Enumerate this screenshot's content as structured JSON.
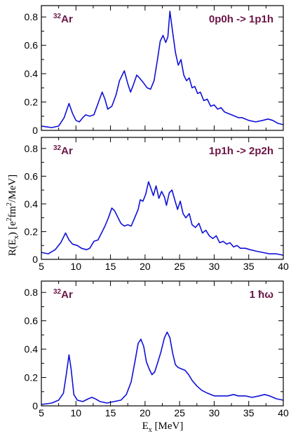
{
  "figure": {
    "ylabel_prefix": "R(E",
    "ylabel_sub": "x",
    "ylabel_mid1": ") [e",
    "ylabel_sup1": "2",
    "ylabel_mid2": "fm",
    "ylabel_sup2": "2",
    "ylabel_suffix": "/MeV]",
    "xlabel_main": "E",
    "xlabel_sub": "x",
    "xlabel_suffix": " [MeV]"
  },
  "chart_data": [
    {
      "type": "line",
      "nucleus_mass": "32",
      "nucleus_symbol": "Ar",
      "label": "0p0h -> 1p1h",
      "xlim": [
        5,
        40
      ],
      "ylim": [
        0,
        0.88
      ],
      "x_ticks": [
        5,
        10,
        15,
        20,
        25,
        30,
        35,
        40
      ],
      "x_tick_labels_shown": false,
      "y_ticks": [
        "0",
        "0.2",
        "0.4",
        "0.6",
        "0.8"
      ],
      "color": "#1010d8",
      "points": [
        [
          5,
          0.03
        ],
        [
          6.5,
          0.02
        ],
        [
          7.5,
          0.03
        ],
        [
          8.3,
          0.09
        ],
        [
          9,
          0.19
        ],
        [
          9.5,
          0.12
        ],
        [
          10,
          0.07
        ],
        [
          10.5,
          0.06
        ],
        [
          11,
          0.09
        ],
        [
          11.4,
          0.11
        ],
        [
          12,
          0.1
        ],
        [
          12.6,
          0.11
        ],
        [
          13.2,
          0.19
        ],
        [
          13.8,
          0.27
        ],
        [
          14.2,
          0.22
        ],
        [
          14.6,
          0.15
        ],
        [
          15.2,
          0.17
        ],
        [
          15.8,
          0.25
        ],
        [
          16.3,
          0.35
        ],
        [
          17,
          0.42
        ],
        [
          17.5,
          0.33
        ],
        [
          17.9,
          0.27
        ],
        [
          18.3,
          0.32
        ],
        [
          18.8,
          0.39
        ],
        [
          19.2,
          0.37
        ],
        [
          19.7,
          0.34
        ],
        [
          20.3,
          0.3
        ],
        [
          20.8,
          0.29
        ],
        [
          21.3,
          0.35
        ],
        [
          21.8,
          0.5
        ],
        [
          22.2,
          0.63
        ],
        [
          22.6,
          0.67
        ],
        [
          23,
          0.62
        ],
        [
          23.3,
          0.66
        ],
        [
          23.6,
          0.84
        ],
        [
          24,
          0.69
        ],
        [
          24.4,
          0.55
        ],
        [
          24.8,
          0.46
        ],
        [
          25.2,
          0.5
        ],
        [
          25.6,
          0.39
        ],
        [
          26,
          0.35
        ],
        [
          26.4,
          0.37
        ],
        [
          26.8,
          0.3
        ],
        [
          27.2,
          0.31
        ],
        [
          27.6,
          0.26
        ],
        [
          28,
          0.27
        ],
        [
          28.5,
          0.21
        ],
        [
          29,
          0.22
        ],
        [
          29.5,
          0.17
        ],
        [
          30,
          0.18
        ],
        [
          30.5,
          0.15
        ],
        [
          31,
          0.16
        ],
        [
          31.5,
          0.13
        ],
        [
          32,
          0.12
        ],
        [
          32.5,
          0.11
        ],
        [
          33,
          0.1
        ],
        [
          33.5,
          0.09
        ],
        [
          34,
          0.09
        ],
        [
          35,
          0.07
        ],
        [
          36,
          0.06
        ],
        [
          37,
          0.07
        ],
        [
          37.8,
          0.08
        ],
        [
          38.5,
          0.07
        ],
        [
          39.2,
          0.05
        ],
        [
          40,
          0.04
        ]
      ]
    },
    {
      "type": "line",
      "nucleus_mass": "32",
      "nucleus_symbol": "Ar",
      "label": "1p1h -> 2p2h",
      "xlim": [
        5,
        40
      ],
      "ylim": [
        0,
        0.88
      ],
      "x_ticks": [
        5,
        10,
        15,
        20,
        25,
        30,
        35,
        40
      ],
      "x_tick_labels": [
        "5",
        "10",
        "15",
        "20",
        "25",
        "30",
        "35",
        "40"
      ],
      "y_ticks": [
        "0",
        "0.2",
        "0.4",
        "0.6",
        "0.8"
      ],
      "color": "#1010d8",
      "points": [
        [
          5,
          0.05
        ],
        [
          6,
          0.04
        ],
        [
          7,
          0.07
        ],
        [
          7.8,
          0.12
        ],
        [
          8.5,
          0.19
        ],
        [
          9,
          0.14
        ],
        [
          9.5,
          0.11
        ],
        [
          10.2,
          0.1
        ],
        [
          10.8,
          0.08
        ],
        [
          11.5,
          0.07
        ],
        [
          12,
          0.08
        ],
        [
          12.6,
          0.13
        ],
        [
          13.2,
          0.14
        ],
        [
          13.7,
          0.19
        ],
        [
          14.2,
          0.24
        ],
        [
          14.7,
          0.3
        ],
        [
          15.2,
          0.37
        ],
        [
          15.6,
          0.35
        ],
        [
          16,
          0.31
        ],
        [
          16.5,
          0.26
        ],
        [
          17,
          0.24
        ],
        [
          17.5,
          0.25
        ],
        [
          18,
          0.24
        ],
        [
          18.5,
          0.3
        ],
        [
          19,
          0.36
        ],
        [
          19.3,
          0.43
        ],
        [
          19.7,
          0.42
        ],
        [
          20.1,
          0.47
        ],
        [
          20.5,
          0.56
        ],
        [
          20.8,
          0.52
        ],
        [
          21.2,
          0.46
        ],
        [
          21.6,
          0.53
        ],
        [
          22,
          0.44
        ],
        [
          22.4,
          0.49
        ],
        [
          22.8,
          0.45
        ],
        [
          23.1,
          0.39
        ],
        [
          23.5,
          0.48
        ],
        [
          23.9,
          0.5
        ],
        [
          24.3,
          0.43
        ],
        [
          24.7,
          0.36
        ],
        [
          25.1,
          0.42
        ],
        [
          25.5,
          0.33
        ],
        [
          25.9,
          0.3
        ],
        [
          26.4,
          0.33
        ],
        [
          26.8,
          0.25
        ],
        [
          27.3,
          0.23
        ],
        [
          27.8,
          0.26
        ],
        [
          28.3,
          0.19
        ],
        [
          28.8,
          0.21
        ],
        [
          29.3,
          0.17
        ],
        [
          29.8,
          0.15
        ],
        [
          30.3,
          0.17
        ],
        [
          30.8,
          0.12
        ],
        [
          31.3,
          0.13
        ],
        [
          31.8,
          0.11
        ],
        [
          32.3,
          0.12
        ],
        [
          32.8,
          0.09
        ],
        [
          33.3,
          0.1
        ],
        [
          33.8,
          0.08
        ],
        [
          34.5,
          0.08
        ],
        [
          35.2,
          0.07
        ],
        [
          36,
          0.06
        ],
        [
          37,
          0.05
        ],
        [
          38,
          0.04
        ],
        [
          39,
          0.04
        ],
        [
          40,
          0.03
        ]
      ]
    },
    {
      "type": "line",
      "nucleus_mass": "32",
      "nucleus_symbol": "Ar",
      "label": "1 ħω",
      "xlim": [
        5,
        40
      ],
      "ylim": [
        0,
        0.88
      ],
      "x_ticks": [
        5,
        10,
        15,
        20,
        25,
        30,
        35,
        40
      ],
      "x_tick_labels": [
        "5",
        "10",
        "15",
        "20",
        "25",
        "30",
        "35",
        "40"
      ],
      "y_ticks": [
        "0",
        "0.2",
        "0.4",
        "0.6",
        "0.8"
      ],
      "color": "#1010d8",
      "points": [
        [
          5,
          0.01
        ],
        [
          6.5,
          0.02
        ],
        [
          7.5,
          0.04
        ],
        [
          8.2,
          0.09
        ],
        [
          8.6,
          0.22
        ],
        [
          9,
          0.36
        ],
        [
          9.3,
          0.26
        ],
        [
          9.7,
          0.08
        ],
        [
          10.2,
          0.04
        ],
        [
          11,
          0.03
        ],
        [
          11.8,
          0.05
        ],
        [
          12.3,
          0.06
        ],
        [
          12.8,
          0.05
        ],
        [
          13.5,
          0.03
        ],
        [
          14.5,
          0.02
        ],
        [
          15.5,
          0.03
        ],
        [
          16.5,
          0.04
        ],
        [
          17.3,
          0.08
        ],
        [
          18,
          0.17
        ],
        [
          18.6,
          0.33
        ],
        [
          19,
          0.44
        ],
        [
          19.4,
          0.47
        ],
        [
          19.8,
          0.42
        ],
        [
          20.2,
          0.31
        ],
        [
          20.6,
          0.26
        ],
        [
          21,
          0.22
        ],
        [
          21.4,
          0.24
        ],
        [
          21.8,
          0.3
        ],
        [
          22.3,
          0.38
        ],
        [
          22.8,
          0.48
        ],
        [
          23.2,
          0.52
        ],
        [
          23.6,
          0.48
        ],
        [
          24,
          0.37
        ],
        [
          24.4,
          0.29
        ],
        [
          24.8,
          0.27
        ],
        [
          25.3,
          0.26
        ],
        [
          25.8,
          0.25
        ],
        [
          26.3,
          0.22
        ],
        [
          26.8,
          0.18
        ],
        [
          27.5,
          0.14
        ],
        [
          28.2,
          0.11
        ],
        [
          29,
          0.09
        ],
        [
          30,
          0.07
        ],
        [
          31,
          0.07
        ],
        [
          32,
          0.07
        ],
        [
          32.8,
          0.08
        ],
        [
          33.5,
          0.07
        ],
        [
          34.5,
          0.07
        ],
        [
          35.5,
          0.06
        ],
        [
          36.5,
          0.07
        ],
        [
          37.3,
          0.08
        ],
        [
          38,
          0.07
        ],
        [
          39,
          0.05
        ],
        [
          40,
          0.04
        ]
      ]
    }
  ]
}
